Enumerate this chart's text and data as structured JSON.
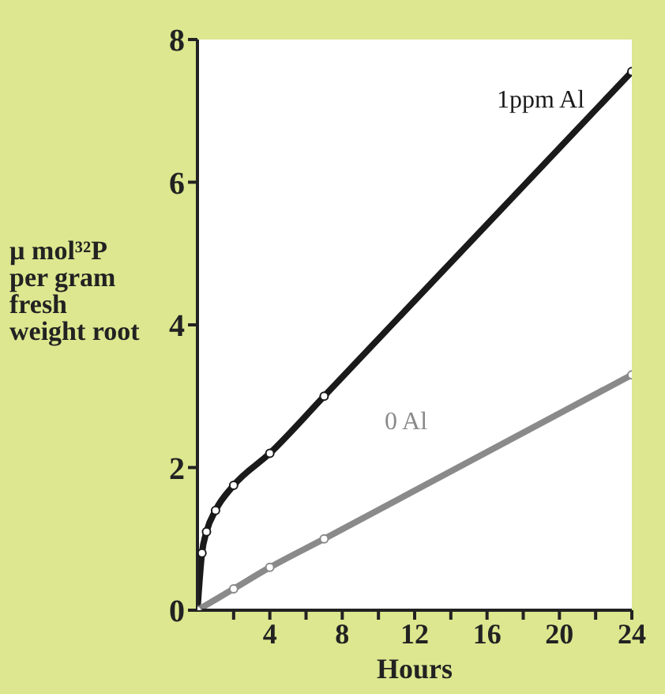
{
  "chart_data": {
    "type": "line",
    "xlabel": "Hours",
    "ylabel": "µ mol³²P per gram fresh weight root",
    "xlim": [
      0,
      24
    ],
    "ylim": [
      0,
      8
    ],
    "xticks": [
      {
        "value": 2,
        "label": null
      },
      4,
      {
        "value": 6,
        "label": null
      },
      8,
      {
        "value": 10,
        "label": null
      },
      12,
      {
        "value": 14,
        "label": null
      },
      16,
      {
        "value": 18,
        "label": null
      },
      20,
      {
        "value": 22,
        "label": null
      },
      24
    ],
    "yticks": [
      0,
      2,
      4,
      6,
      8
    ],
    "marker": "circle",
    "line_style": "solid",
    "series": [
      {
        "name": "1ppm Al",
        "color": "#1a1a1a",
        "x": [
          0,
          0.25,
          0.5,
          1,
          2,
          4,
          7,
          24
        ],
        "values": [
          0,
          0.8,
          1.1,
          1.4,
          1.75,
          2.2,
          3.0,
          7.55
        ]
      },
      {
        "name": "0 Al",
        "color": "#8a8a8a",
        "x": [
          0,
          2,
          4,
          7,
          24
        ],
        "values": [
          0,
          0.3,
          0.6,
          1.0,
          3.3
        ]
      }
    ]
  }
}
